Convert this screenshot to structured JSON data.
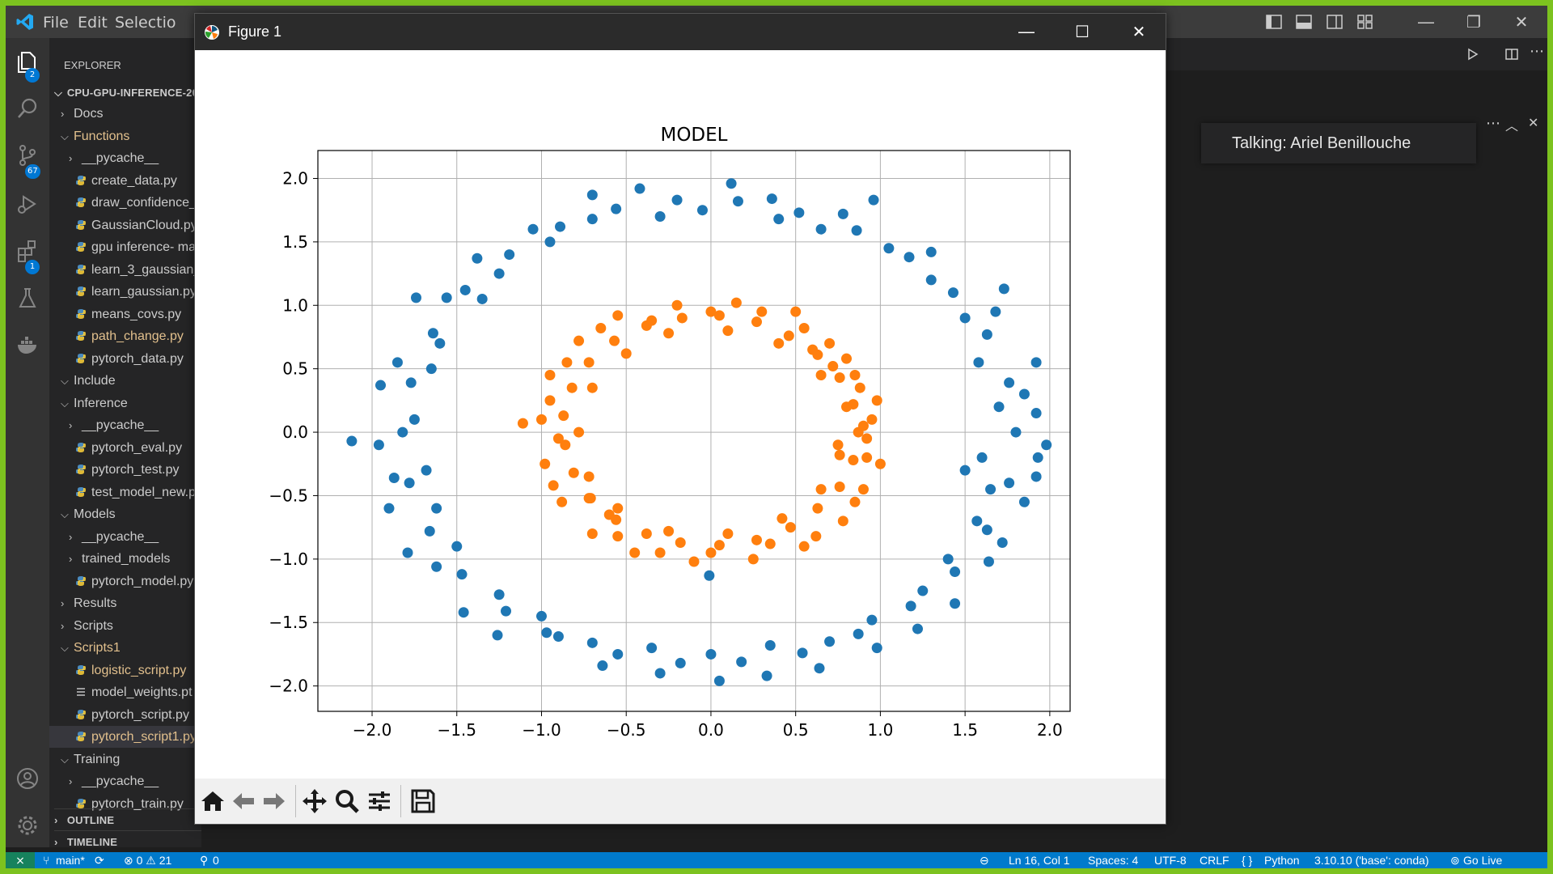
{
  "vscode": {
    "menu": [
      "File",
      "Edit",
      "Selectio"
    ],
    "activity_badges": {
      "explorer": "2",
      "source_control": "67",
      "extensions": "1"
    },
    "explorer": {
      "title": "EXPLORER",
      "project": "CPU-GPU-INFERENCE-20",
      "items": [
        {
          "label": "Docs",
          "kind": "folder",
          "open": false,
          "level": 0
        },
        {
          "label": "Functions",
          "kind": "folder",
          "open": true,
          "level": 0,
          "modified": true
        },
        {
          "label": "__pycache__",
          "kind": "folder",
          "open": false,
          "level": 1
        },
        {
          "label": "create_data.py",
          "kind": "py",
          "level": 1
        },
        {
          "label": "draw_confidence_",
          "kind": "py",
          "level": 1
        },
        {
          "label": "GaussianCloud.py",
          "kind": "py",
          "level": 1
        },
        {
          "label": "gpu inference- ma",
          "kind": "py",
          "level": 1
        },
        {
          "label": "learn_3_gaussian_",
          "kind": "py",
          "level": 1
        },
        {
          "label": "learn_gaussian.py",
          "kind": "py",
          "level": 1
        },
        {
          "label": "means_covs.py",
          "kind": "py",
          "level": 1
        },
        {
          "label": "path_change.py",
          "kind": "py",
          "level": 1,
          "modified": true
        },
        {
          "label": "pytorch_data.py",
          "kind": "py",
          "level": 1
        },
        {
          "label": "Include",
          "kind": "folder",
          "open": true,
          "level": 0
        },
        {
          "label": "Inference",
          "kind": "folder",
          "open": true,
          "level": 0
        },
        {
          "label": "__pycache__",
          "kind": "folder",
          "open": false,
          "level": 1
        },
        {
          "label": "pytorch_eval.py",
          "kind": "py",
          "level": 1
        },
        {
          "label": "pytorch_test.py",
          "kind": "py",
          "level": 1
        },
        {
          "label": "test_model_new.p",
          "kind": "py",
          "level": 1
        },
        {
          "label": "Models",
          "kind": "folder",
          "open": true,
          "level": 0
        },
        {
          "label": "__pycache__",
          "kind": "folder",
          "open": false,
          "level": 1
        },
        {
          "label": "trained_models",
          "kind": "folder",
          "open": false,
          "level": 1
        },
        {
          "label": "pytorch_model.py",
          "kind": "py",
          "level": 1
        },
        {
          "label": "Results",
          "kind": "folder",
          "open": false,
          "level": 0
        },
        {
          "label": "Scripts",
          "kind": "folder",
          "open": false,
          "level": 0
        },
        {
          "label": "Scripts1",
          "kind": "folder",
          "open": true,
          "level": 0,
          "modified": true
        },
        {
          "label": "logistic_script.py",
          "kind": "py",
          "level": 1,
          "modified": true
        },
        {
          "label": "model_weights.pt",
          "kind": "pt",
          "level": 1
        },
        {
          "label": "pytorch_script.py",
          "kind": "py",
          "level": 1
        },
        {
          "label": "pytorch_script1.py",
          "kind": "py",
          "level": 1,
          "modified": true,
          "selected": true
        },
        {
          "label": "Training",
          "kind": "folder",
          "open": true,
          "level": 0
        },
        {
          "label": "__pycache__",
          "kind": "folder",
          "open": false,
          "level": 1
        },
        {
          "label": "pytorch_train.py",
          "kind": "py",
          "level": 1
        }
      ],
      "outline": "OUTLINE",
      "timeline": "TIMELINE"
    },
    "toast": "Talking: Ariel Benillouche",
    "status": {
      "remote": "⨯",
      "branch": "main*",
      "problems": "⊗ 0 ⚠ 21",
      "ports": "0",
      "position": "Ln 16, Col 1",
      "spaces": "Spaces: 4",
      "encoding": "UTF-8",
      "eol": "CRLF",
      "language": "Python",
      "interpreter": "3.10.10 ('base': conda)",
      "golive": "Go Live"
    }
  },
  "figure": {
    "window_title": "Figure 1",
    "toolbar": [
      "home-icon",
      "back-icon",
      "forward-icon",
      "pan-icon",
      "zoom-icon",
      "configure-subplots-icon",
      "save-icon"
    ]
  },
  "chart_data": {
    "type": "scatter",
    "title": "MODEL",
    "xlabel": "",
    "ylabel": "",
    "xlim": [
      -2.32,
      2.12
    ],
    "ylim": [
      -2.2,
      2.22
    ],
    "xticks": [
      -2.0,
      -1.5,
      -1.0,
      -0.5,
      0.0,
      0.5,
      1.0,
      1.5,
      2.0
    ],
    "yticks": [
      2.0,
      1.5,
      1.0,
      0.5,
      0.0,
      -0.5,
      -1.0,
      -1.5,
      -2.0
    ],
    "xtick_labels": [
      "−2.0",
      "−1.5",
      "−1.0",
      "−0.5",
      "0.0",
      "0.5",
      "1.0",
      "1.5",
      "2.0"
    ],
    "ytick_labels": [
      "2.0",
      "1.5",
      "1.0",
      "0.5",
      "0.0",
      "−0.5",
      "−1.0",
      "−1.5",
      "−2.0"
    ],
    "grid": true,
    "series": [
      {
        "color": "#1f77b4",
        "points": [
          [
            1.8,
            0.0
          ],
          [
            1.76,
            0.39
          ],
          [
            1.63,
            0.77
          ],
          [
            1.43,
            1.1
          ],
          [
            1.17,
            1.38
          ],
          [
            0.86,
            1.59
          ],
          [
            0.52,
            1.73
          ],
          [
            0.16,
            1.82
          ],
          [
            -0.2,
            1.83
          ],
          [
            -0.56,
            1.76
          ],
          [
            -0.89,
            1.62
          ],
          [
            -1.19,
            1.4
          ],
          [
            -1.45,
            1.12
          ],
          [
            -1.64,
            0.78
          ],
          [
            -1.77,
            0.39
          ],
          [
            -1.82,
            0.0
          ],
          [
            -1.78,
            -0.4
          ],
          [
            -1.66,
            -0.78
          ],
          [
            -1.47,
            -1.12
          ],
          [
            -1.21,
            -1.41
          ],
          [
            -0.9,
            -1.61
          ],
          [
            -0.55,
            -1.75
          ],
          [
            -0.18,
            -1.82
          ],
          [
            0.18,
            -1.81
          ],
          [
            0.54,
            -1.74
          ],
          [
            0.87,
            -1.59
          ],
          [
            1.18,
            -1.37
          ],
          [
            1.44,
            -1.1
          ],
          [
            1.63,
            -0.77
          ],
          [
            1.76,
            -0.4
          ],
          [
            1.92,
            0.15
          ],
          [
            1.92,
            -0.35
          ],
          [
            1.68,
            0.95
          ],
          [
            1.3,
            1.42
          ],
          [
            0.78,
            1.72
          ],
          [
            0.12,
            1.96
          ],
          [
            -0.42,
            1.92
          ],
          [
            -1.05,
            1.6
          ],
          [
            -1.56,
            1.06
          ],
          [
            -1.85,
            0.55
          ],
          [
            -1.96,
            -0.1
          ],
          [
            -1.9,
            -0.6
          ],
          [
            -1.62,
            -1.06
          ],
          [
            -1.26,
            -1.6
          ],
          [
            -0.64,
            -1.84
          ],
          [
            0.05,
            -1.96
          ],
          [
            0.64,
            -1.86
          ],
          [
            1.22,
            -1.55
          ],
          [
            1.64,
            -1.02
          ],
          [
            1.85,
            -0.55
          ],
          [
            1.7,
            0.2
          ],
          [
            1.6,
            -0.2
          ],
          [
            1.5,
            0.9
          ],
          [
            1.05,
            1.45
          ],
          [
            0.4,
            1.68
          ],
          [
            -0.3,
            1.7
          ],
          [
            -0.95,
            1.5
          ],
          [
            -1.35,
            1.05
          ],
          [
            -1.65,
            0.5
          ],
          [
            -1.68,
            -0.3
          ],
          [
            -1.5,
            -0.9
          ],
          [
            -1.0,
            -1.45
          ],
          [
            -0.35,
            -1.7
          ],
          [
            0.35,
            -1.68
          ],
          [
            0.95,
            -1.48
          ],
          [
            1.4,
            -1.0
          ],
          [
            1.65,
            -0.45
          ],
          [
            -2.12,
            -0.07
          ],
          [
            -0.01,
            -1.13
          ],
          [
            1.92,
            0.55
          ],
          [
            1.73,
            1.13
          ],
          [
            0.96,
            1.83
          ],
          [
            0.36,
            1.84
          ],
          [
            -0.7,
            1.87
          ],
          [
            -1.38,
            1.37
          ],
          [
            -1.74,
            1.06
          ],
          [
            -1.95,
            0.37
          ],
          [
            -1.87,
            -0.36
          ],
          [
            -1.79,
            -0.95
          ],
          [
            -1.46,
            -1.42
          ],
          [
            -0.97,
            -1.58
          ],
          [
            -0.3,
            -1.9
          ],
          [
            0.33,
            -1.92
          ],
          [
            0.98,
            -1.7
          ],
          [
            1.44,
            -1.35
          ],
          [
            1.72,
            -0.87
          ],
          [
            1.93,
            -0.2
          ],
          [
            1.58,
            0.55
          ],
          [
            1.3,
            1.2
          ],
          [
            0.65,
            1.6
          ],
          [
            -0.05,
            1.75
          ],
          [
            -0.7,
            1.68
          ],
          [
            -1.25,
            1.25
          ],
          [
            -1.6,
            0.7
          ],
          [
            -1.75,
            0.1
          ],
          [
            -1.62,
            -0.6
          ],
          [
            -1.25,
            -1.28
          ],
          [
            -0.7,
            -1.66
          ],
          [
            0.0,
            -1.75
          ],
          [
            0.7,
            -1.65
          ],
          [
            1.25,
            -1.25
          ],
          [
            1.57,
            -0.7
          ],
          [
            1.5,
            -0.3
          ],
          [
            1.85,
            0.3
          ],
          [
            1.98,
            -0.1
          ]
        ]
      },
      {
        "color": "#ff7f0e",
        "points": [
          [
            0.87,
            0.0
          ],
          [
            0.84,
            0.22
          ],
          [
            0.76,
            0.43
          ],
          [
            0.63,
            0.61
          ],
          [
            0.46,
            0.76
          ],
          [
            0.27,
            0.87
          ],
          [
            0.05,
            0.92
          ],
          [
            -0.17,
            0.9
          ],
          [
            -0.38,
            0.84
          ],
          [
            -0.57,
            0.72
          ],
          [
            -0.72,
            0.55
          ],
          [
            -0.82,
            0.35
          ],
          [
            -0.87,
            0.13
          ],
          [
            -0.86,
            -0.1
          ],
          [
            -0.81,
            -0.32
          ],
          [
            -0.71,
            -0.52
          ],
          [
            -0.56,
            -0.69
          ],
          [
            -0.38,
            -0.8
          ],
          [
            -0.18,
            -0.87
          ],
          [
            0.05,
            -0.89
          ],
          [
            0.27,
            -0.85
          ],
          [
            0.47,
            -0.75
          ],
          [
            0.63,
            -0.6
          ],
          [
            0.76,
            -0.43
          ],
          [
            0.84,
            -0.22
          ],
          [
            0.95,
            0.1
          ],
          [
            0.92,
            -0.2
          ],
          [
            0.85,
            0.45
          ],
          [
            0.7,
            0.7
          ],
          [
            0.5,
            0.95
          ],
          [
            0.15,
            1.02
          ],
          [
            -0.2,
            1.0
          ],
          [
            -0.55,
            0.92
          ],
          [
            -0.78,
            0.72
          ],
          [
            -0.95,
            0.45
          ],
          [
            -1.0,
            0.1
          ],
          [
            -0.98,
            -0.25
          ],
          [
            -0.88,
            -0.55
          ],
          [
            -0.7,
            -0.8
          ],
          [
            -0.45,
            -0.95
          ],
          [
            -0.1,
            -1.02
          ],
          [
            0.25,
            -1.0
          ],
          [
            0.55,
            -0.9
          ],
          [
            0.78,
            -0.7
          ],
          [
            0.9,
            -0.45
          ],
          [
            1.0,
            -0.25
          ],
          [
            0.98,
            0.25
          ],
          [
            0.8,
            0.2
          ],
          [
            0.75,
            -0.1
          ],
          [
            0.65,
            0.45
          ],
          [
            0.4,
            0.7
          ],
          [
            0.1,
            0.8
          ],
          [
            -0.25,
            0.78
          ],
          [
            -0.5,
            0.62
          ],
          [
            -0.7,
            0.35
          ],
          [
            -0.78,
            0.0
          ],
          [
            -0.72,
            -0.35
          ],
          [
            -0.55,
            -0.6
          ],
          [
            -0.25,
            -0.78
          ],
          [
            0.1,
            -0.8
          ],
          [
            0.42,
            -0.68
          ],
          [
            0.65,
            -0.45
          ],
          [
            0.76,
            -0.18
          ],
          [
            -1.11,
            0.07
          ],
          [
            0.8,
            0.58
          ],
          [
            -0.65,
            0.82
          ],
          [
            -0.93,
            -0.42
          ],
          [
            0.62,
            -0.82
          ],
          [
            0.88,
            0.35
          ],
          [
            -0.3,
            -0.95
          ],
          [
            0.3,
            0.95
          ],
          [
            -0.85,
            0.55
          ],
          [
            0.85,
            -0.55
          ],
          [
            0.0,
            0.95
          ],
          [
            0.0,
            -0.95
          ],
          [
            -0.9,
            -0.05
          ],
          [
            0.9,
            0.05
          ],
          [
            0.55,
            0.82
          ],
          [
            -0.55,
            -0.82
          ],
          [
            0.72,
            0.52
          ],
          [
            -0.72,
            -0.52
          ],
          [
            0.35,
            -0.88
          ],
          [
            -0.35,
            0.88
          ],
          [
            0.92,
            -0.05
          ],
          [
            -0.95,
            0.25
          ],
          [
            0.6,
            0.65
          ],
          [
            -0.6,
            -0.65
          ]
        ]
      }
    ]
  }
}
